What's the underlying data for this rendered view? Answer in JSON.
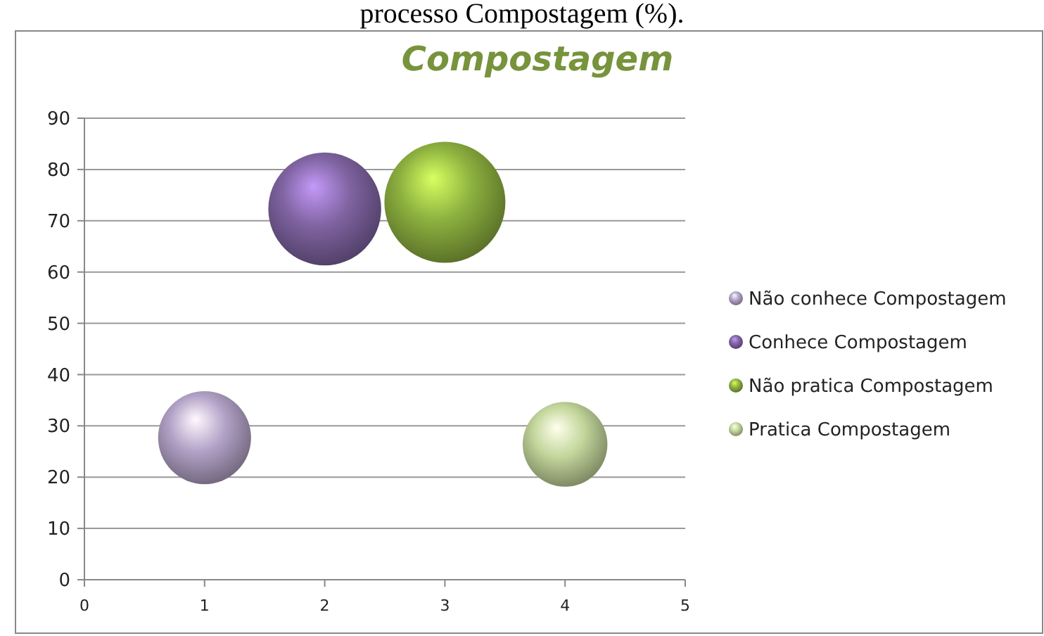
{
  "chart_data": {
    "type": "bubble",
    "title": "Compostagem",
    "annotations": [
      "processo Compostagem (%)."
    ],
    "series": [
      {
        "name": "Não conhece Compostagem",
        "color": "#b3a2c7",
        "x": [
          1
        ],
        "values": [
          27.7
        ],
        "sizes": [
          0.59
        ]
      },
      {
        "name": "Conhece Compostagem",
        "color": "#8064a2",
        "x": [
          2
        ],
        "values": [
          72.3
        ],
        "sizes": [
          0.87
        ]
      },
      {
        "name": "Não pratica Compostagem",
        "color": "#8db13f",
        "x": [
          3
        ],
        "values": [
          73.6
        ],
        "sizes": [
          1
        ]
      },
      {
        "name": "Pratica Compostagem",
        "color": "#c3d69b",
        "x": [
          4
        ],
        "values": [
          26.4
        ],
        "sizes": [
          0.49
        ]
      }
    ],
    "xlim": [
      0,
      5
    ],
    "xticks": [
      0,
      1,
      2,
      3,
      4,
      5
    ],
    "ylim": [
      0,
      90
    ],
    "yticks": [
      0,
      10,
      20,
      30,
      40,
      50,
      60,
      70,
      80,
      90
    ],
    "grid": "y",
    "legend": "right"
  }
}
